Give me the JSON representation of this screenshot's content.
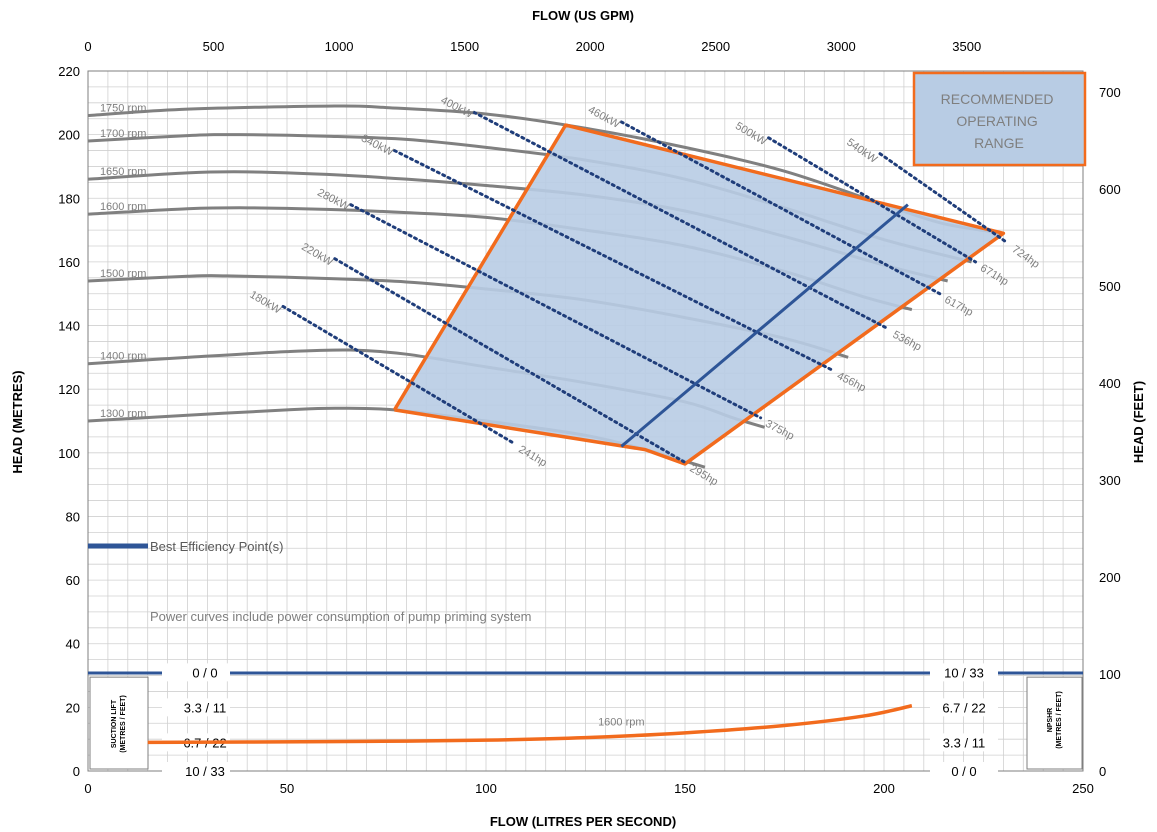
{
  "chart_data": {
    "type": "line",
    "title": "",
    "xlabel": "FLOW (LITRES PER SECOND)",
    "ylabel": "HEAD (METRES)",
    "x2label": "FLOW (US GPM)",
    "y2label": "HEAD (FEET)",
    "xlim": [
      0,
      250
    ],
    "ylim": [
      0,
      220
    ],
    "x2lim": [
      0,
      3963
    ],
    "y2lim": [
      0,
      721.8
    ],
    "xticks": [
      "0",
      "50",
      "100",
      "150",
      "200",
      "250"
    ],
    "yticks": [
      "0",
      "20",
      "40",
      "60",
      "80",
      "100",
      "120",
      "140",
      "160",
      "180",
      "200",
      "220"
    ],
    "x2ticks": [
      "0",
      "500",
      "1000",
      "1500",
      "2000",
      "2500",
      "3000",
      "3500"
    ],
    "y2ticks": [
      "0",
      "100",
      "200",
      "300",
      "400",
      "500",
      "600",
      "700"
    ],
    "grid": true,
    "head_curves": [
      {
        "name": "1750 rpm",
        "points": [
          [
            0,
            206
          ],
          [
            25,
            208
          ],
          [
            62,
            209
          ],
          [
            75,
            208.5
          ],
          [
            100,
            206.5
          ],
          [
            125,
            202
          ],
          [
            150,
            196
          ],
          [
            175,
            188.5
          ],
          [
            200,
            178
          ],
          [
            215,
            172
          ],
          [
            230,
            169
          ]
        ]
      },
      {
        "name": "1700 rpm",
        "points": [
          [
            0,
            198
          ],
          [
            25,
            199.7
          ],
          [
            38,
            200
          ],
          [
            60,
            199.5
          ],
          [
            80,
            198.5
          ],
          [
            100,
            196
          ],
          [
            125,
            192
          ],
          [
            150,
            186
          ],
          [
            175,
            177
          ],
          [
            200,
            167
          ],
          [
            222,
            160
          ]
        ]
      },
      {
        "name": "1650 rpm",
        "points": [
          [
            0,
            186
          ],
          [
            25,
            188
          ],
          [
            40,
            188.3
          ],
          [
            60,
            187.5
          ],
          [
            80,
            186
          ],
          [
            100,
            184
          ],
          [
            125,
            181
          ],
          [
            150,
            176
          ],
          [
            175,
            168
          ],
          [
            200,
            159
          ],
          [
            216,
            154
          ]
        ]
      },
      {
        "name": "1600 rpm",
        "points": [
          [
            0,
            175
          ],
          [
            25,
            176.7
          ],
          [
            40,
            177
          ],
          [
            60,
            176.5
          ],
          [
            80,
            175.5
          ],
          [
            100,
            174
          ],
          [
            125,
            170
          ],
          [
            150,
            165
          ],
          [
            175,
            157
          ],
          [
            195,
            149
          ],
          [
            207,
            145
          ]
        ]
      },
      {
        "name": "1500 rpm",
        "points": [
          [
            0,
            154
          ],
          [
            25,
            155.5
          ],
          [
            35,
            155.6
          ],
          [
            60,
            154.8
          ],
          [
            80,
            153.7
          ],
          [
            100,
            151.5
          ],
          [
            125,
            148
          ],
          [
            150,
            142.5
          ],
          [
            175,
            136
          ],
          [
            191,
            130
          ]
        ]
      },
      {
        "name": "1400 rpm",
        "points": [
          [
            0,
            128
          ],
          [
            25,
            130
          ],
          [
            50,
            131.8
          ],
          [
            66,
            132.3
          ],
          [
            80,
            131
          ],
          [
            100,
            127
          ],
          [
            125,
            122
          ],
          [
            150,
            116
          ],
          [
            162,
            111
          ],
          [
            170,
            108
          ]
        ]
      },
      {
        "name": "1300 rpm",
        "points": [
          [
            0,
            110
          ],
          [
            25,
            111.8
          ],
          [
            50,
            113.5
          ],
          [
            62,
            114
          ],
          [
            77,
            113.5
          ],
          [
            100,
            110
          ],
          [
            125,
            105.5
          ],
          [
            140,
            101
          ],
          [
            155,
            95.5
          ]
        ]
      }
    ],
    "rpm_labels": [
      "1750 rpm",
      "1700 rpm",
      "1650 rpm",
      "1600 rpm",
      "1500 rpm",
      "1400 rpm",
      "1300 rpm"
    ],
    "power_curves": [
      {
        "kw": "180kW",
        "hp": "241hp",
        "start": [
          49,
          146
        ],
        "end": [
          107,
          103
        ]
      },
      {
        "kw": "220kW",
        "hp": "295hp",
        "start": [
          62,
          161
        ],
        "end": [
          150,
          97
        ]
      },
      {
        "kw": "280kW",
        "hp": "375hp",
        "start": [
          66,
          178
        ],
        "end": [
          169,
          111
        ]
      },
      {
        "kw": "340kW",
        "hp": "456hp",
        "start": [
          77,
          195
        ],
        "end": [
          187,
          126
        ]
      },
      {
        "kw": "400kW",
        "hp": "536hp",
        "start": [
          97,
          207
        ],
        "end": [
          201,
          139
        ]
      },
      {
        "kw": "460kW",
        "hp": "617hp",
        "start": [
          134,
          204
        ],
        "end": [
          214,
          150
        ]
      },
      {
        "kw": "500kW",
        "hp": "671hp",
        "start": [
          171,
          199
        ],
        "end": [
          223,
          160
        ]
      },
      {
        "kw": "540kW",
        "hp": "724hp",
        "start": [
          199,
          194
        ],
        "end": [
          231,
          166
        ]
      }
    ],
    "recommended_region": [
      [
        77,
        113.5
      ],
      [
        120,
        203
      ],
      [
        230,
        169
      ],
      [
        150,
        96.5
      ],
      [
        140,
        101
      ]
    ],
    "recommended_label": "RECOMMENDED OPERATING RANGE",
    "bep_line": [
      [
        134,
        102
      ],
      [
        206,
        178
      ]
    ],
    "legend": [
      {
        "name": "Best Efficiency Point(s)",
        "color": "#2e5597"
      }
    ],
    "note": "Power curves include power consumption of pump priming system",
    "npshr_curve": {
      "name": "1600 rpm",
      "points": [
        [
          15,
          9
        ],
        [
          40,
          9.1
        ],
        [
          70,
          9.3
        ],
        [
          100,
          9.7
        ],
        [
          125,
          10.5
        ],
        [
          150,
          12
        ],
        [
          175,
          14.3
        ],
        [
          195,
          17.3
        ],
        [
          207,
          20.5
        ]
      ]
    },
    "suction_lift_scale": [
      "0 / 0",
      "3.3 / 11",
      "6.7 / 22",
      "10 / 33"
    ],
    "npshr_scale": [
      "10 / 33",
      "6.7 / 22",
      "3.3 / 11",
      "0 / 0"
    ],
    "suction_lift_title": [
      "SUCTION LIFT",
      "(METRES / FEET)"
    ],
    "npshr_title": [
      "NPSHR",
      "(METRES / FEET)"
    ],
    "colors": {
      "head": "#808080",
      "power": "#1f3d7a",
      "region_fill": "#b8cce4",
      "region_edge": "#f26b1d",
      "bep": "#2e5597",
      "npshr": "#f26b1d",
      "grid": "#d0d0d0"
    }
  }
}
